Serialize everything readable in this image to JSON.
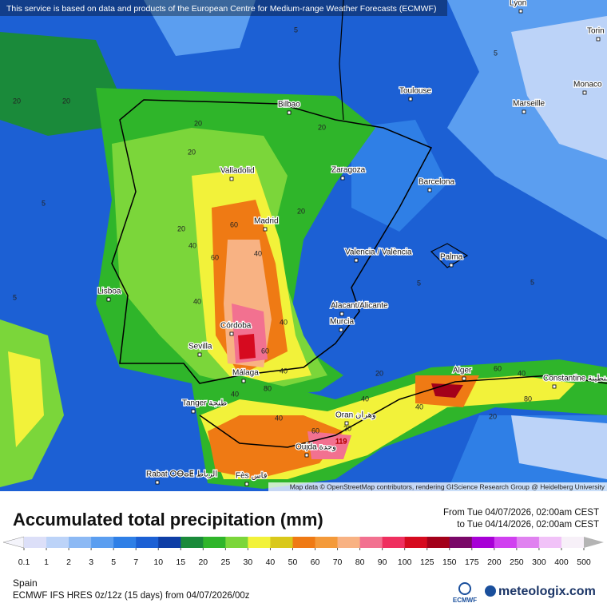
{
  "header": {
    "attribution": "This service is based on data and products of the European Centre for Medium-range Weather Forecasts (ECMWF)"
  },
  "map": {
    "cities": [
      "Lyon",
      "Torin",
      "Monaco",
      "Toulouse",
      "Marseille",
      "Bilbao",
      "Zaragoza",
      "Barcelona",
      "Valladolid",
      "Madrid",
      "Valencia / València",
      "Palma",
      "Lisboa",
      "Alacant/Alicante",
      "Murcia",
      "Córdoba",
      "Sevilla",
      "Málaga",
      "Alger",
      "Constantine قسنطينة",
      "Tanger طنجة",
      "Oran وهران",
      "Oujda وجدة",
      "Rabat ⵔⴱⴰⵟ الرباط",
      "Fès فاس"
    ],
    "contour_labels": [
      "5",
      "5",
      "20",
      "20",
      "20",
      "20",
      "5",
      "20",
      "40",
      "60",
      "60",
      "40",
      "20",
      "20",
      "40",
      "40",
      "60",
      "40",
      "40",
      "80",
      "40",
      "20",
      "60",
      "20",
      "40",
      "119",
      "40",
      "60",
      "80",
      "40",
      "20",
      "5",
      "5",
      "5"
    ],
    "credit": "Map data © OpenStreetMap contributors, rendering GIScience Research Group @ Heidelberg University"
  },
  "footer": {
    "title": "Accumulated total precipitation (mm)",
    "from": "From Tue 04/07/2026, 02:00am CEST",
    "to": "to Tue 04/14/2026, 02:00am CEST",
    "legend": {
      "values": [
        0.1,
        1,
        2,
        3,
        5,
        7,
        10,
        15,
        20,
        25,
        30,
        40,
        50,
        60,
        70,
        80,
        90,
        100,
        125,
        150,
        175,
        200,
        250,
        300,
        400,
        500
      ],
      "colors": [
        "#f4f4fb",
        "#dcdff8",
        "#bcd3f8",
        "#8cb9f4",
        "#5b9ef0",
        "#2f7fe6",
        "#1c60d4",
        "#0e3ea6",
        "#1a8a3a",
        "#2fb52a",
        "#7bd63a",
        "#f2f23a",
        "#d9c81a",
        "#ef7a14",
        "#f49a3a",
        "#f8b283",
        "#f27190",
        "#ef2f5f",
        "#d60a1f",
        "#a3001a",
        "#7a0868",
        "#a700d6",
        "#d040f0",
        "#e082f0",
        "#f1c2f8",
        "#f7f0f8",
        "#b4b4b4"
      ]
    },
    "region": "Spain",
    "model": "ECMWF IFS HRES 0z/12z (15 days) from 04/07/2026/00z",
    "ecmwf_logo": "ECMWF",
    "brand": "meteologix.com"
  }
}
